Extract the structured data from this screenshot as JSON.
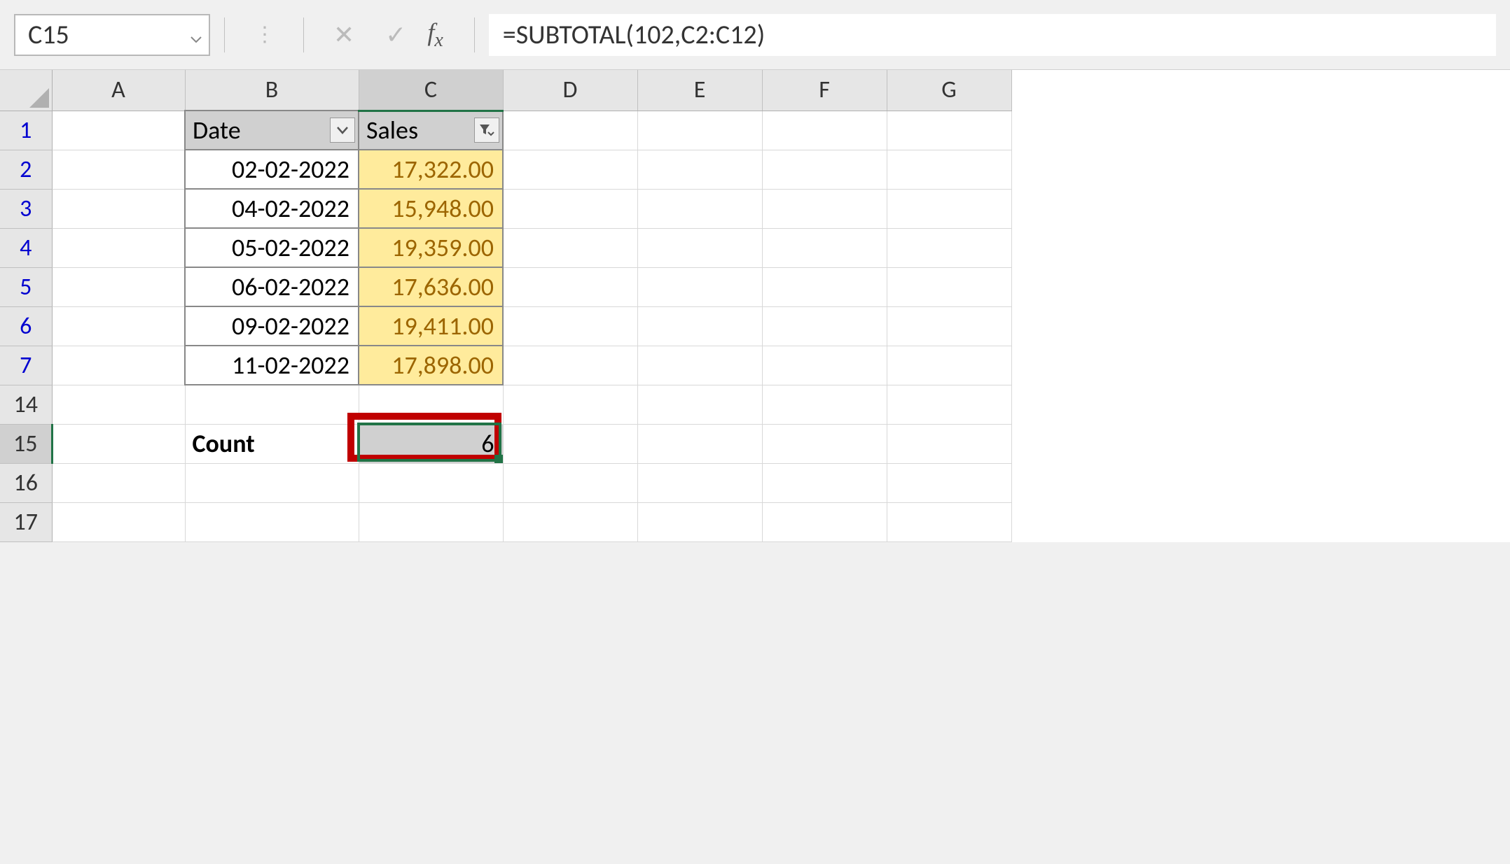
{
  "formula_bar": {
    "cell_ref": "C15",
    "formula": "=SUBTOTAL(102,C2:C12)"
  },
  "columns": [
    "A",
    "B",
    "C",
    "D",
    "E",
    "F",
    "G"
  ],
  "visible_rows": [
    "1",
    "2",
    "3",
    "4",
    "5",
    "6",
    "7",
    "14",
    "15",
    "16",
    "17"
  ],
  "active_column": "C",
  "active_row": "15",
  "table": {
    "headers": {
      "date": "Date",
      "sales": "Sales"
    },
    "rows": [
      {
        "date": "02-02-2022",
        "sales": "17,322.00"
      },
      {
        "date": "04-02-2022",
        "sales": "15,948.00"
      },
      {
        "date": "05-02-2022",
        "sales": "19,359.00"
      },
      {
        "date": "06-02-2022",
        "sales": "17,636.00"
      },
      {
        "date": "09-02-2022",
        "sales": "19,411.00"
      },
      {
        "date": "11-02-2022",
        "sales": "17,898.00"
      }
    ],
    "sales_filter_active": true
  },
  "summary": {
    "label": "Count",
    "value": "6"
  },
  "colors": {
    "sales_fill": "#ffeb9c",
    "sales_text": "#9c6500",
    "selection": "#217346",
    "annotation": "#c00000",
    "header_bg": "#e6e6e6",
    "table_header_bg": "#d0d0d0"
  }
}
